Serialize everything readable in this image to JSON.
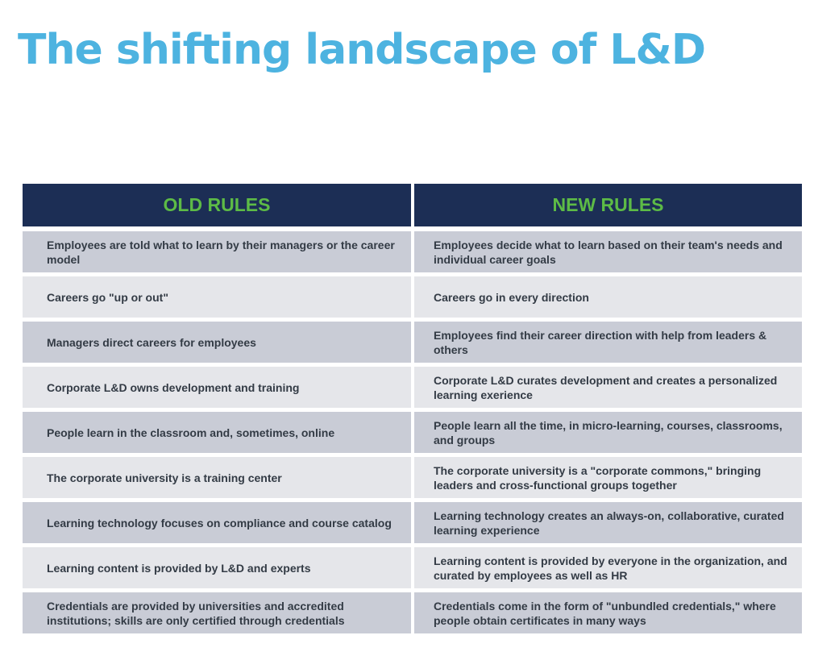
{
  "title": "The shifting landscape of L&D",
  "headers": {
    "old": "OLD RULES",
    "new": "NEW RULES"
  },
  "rows": [
    {
      "old": "Employees are told what to learn by their managers or the career model",
      "new": "Employees decide what to learn based on their team's needs and individual career goals"
    },
    {
      "old": "Careers go \"up or out\"",
      "new": "Careers go in every direction"
    },
    {
      "old": "Managers direct careers for employees",
      "new": "Employees find their career direction with help from leaders & others"
    },
    {
      "old": "Corporate L&D owns development and training",
      "new": "Corporate L&D curates development and creates a personalized learning exerience"
    },
    {
      "old": "People learn in the classroom and, sometimes, online",
      "new": "People learn all the time, in micro-learning, courses, classrooms, and groups"
    },
    {
      "old": "The corporate university is a training center",
      "new": "The corporate university is a \"corporate commons,\" bringing leaders and cross-functional groups together"
    },
    {
      "old": "Learning technology focuses on compliance and course catalog",
      "new": "Learning technology creates an always-on, collaborative, curated learning experience"
    },
    {
      "old": "Learning content is provided by L&D and experts",
      "new": "Learning content is provided by everyone in the organization, and curated by employees as well as HR"
    },
    {
      "old": "Credentials are provided by universities and accredited institutions; skills are only certified through credentials",
      "new": "Credentials come in the form of \"unbundled credentials,\" where people obtain certificates in many ways"
    }
  ],
  "colors": {
    "title": "#4db3e0",
    "header_bg": "#1c2e55",
    "header_text": "#5dbb46",
    "row_dark": "#c9ccd6",
    "row_light": "#e5e6ea",
    "cell_text": "#333b45"
  }
}
